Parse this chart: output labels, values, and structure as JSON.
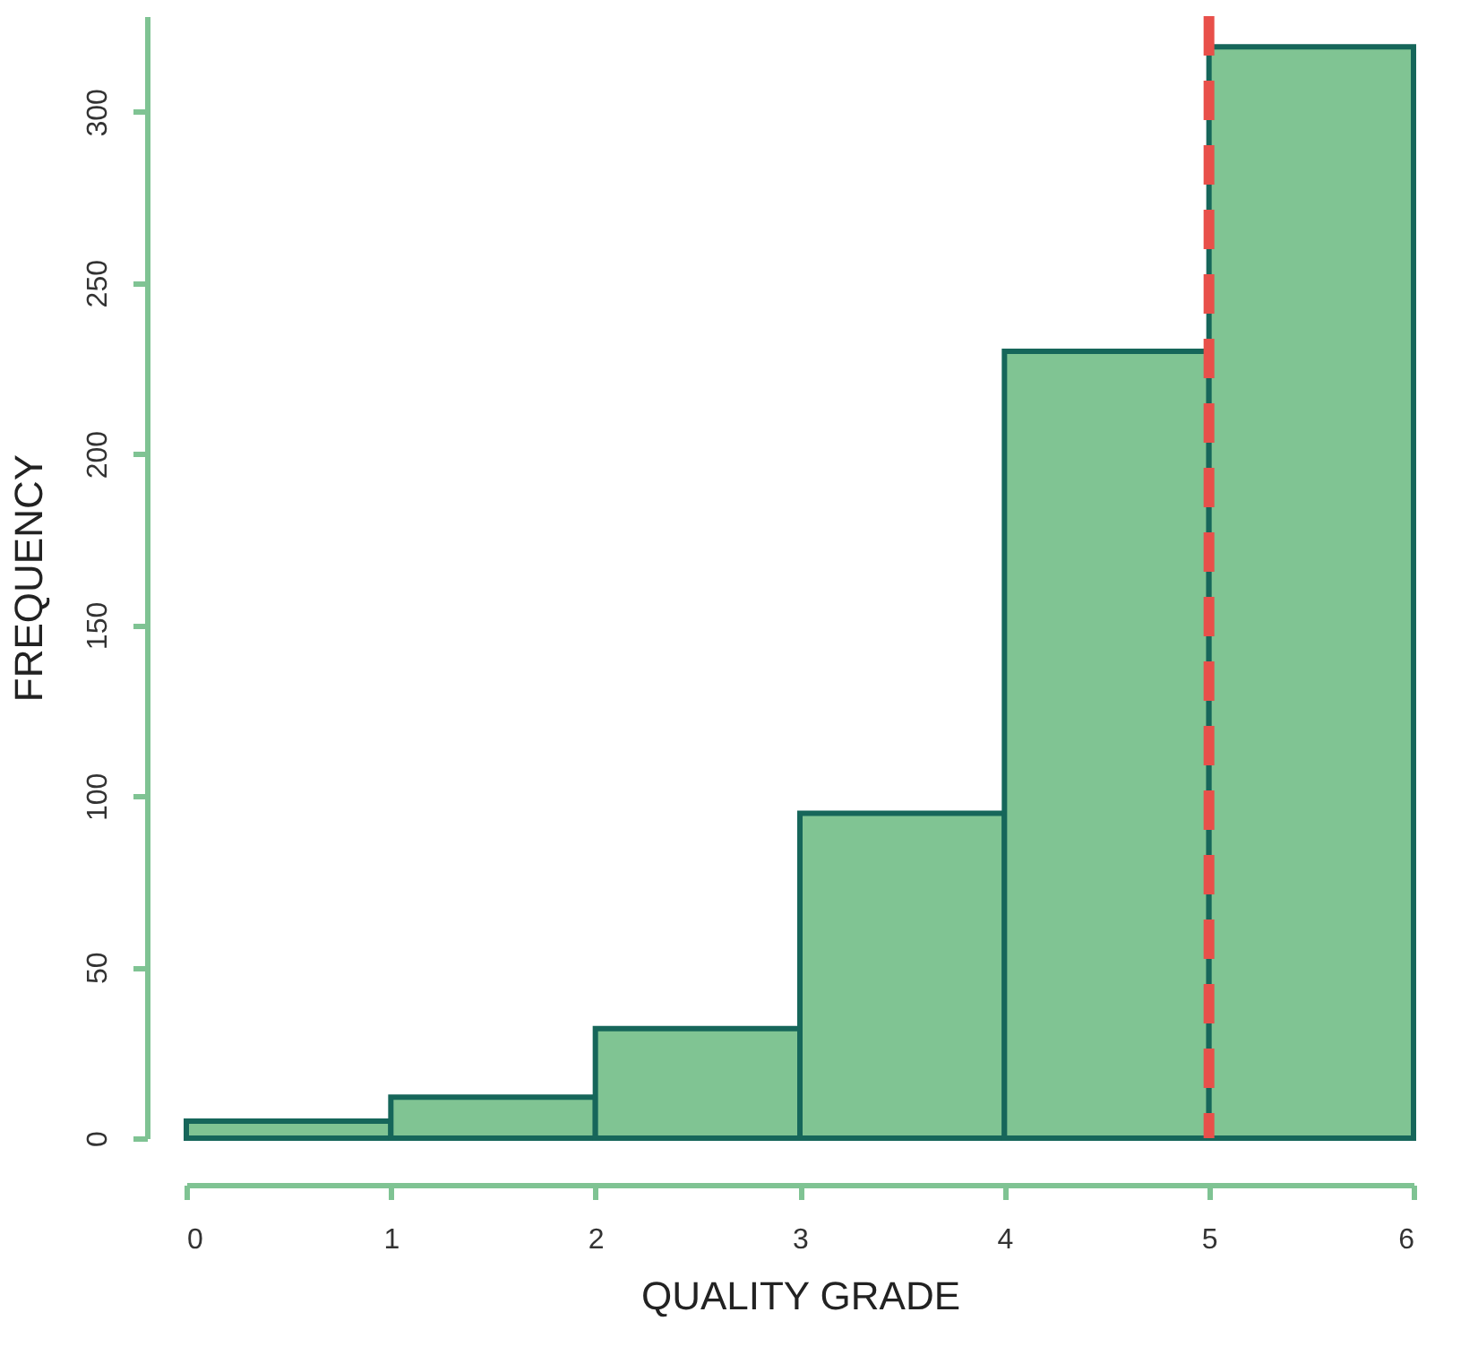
{
  "chart_data": {
    "type": "histogram",
    "xlabel": "QUALITY GRADE",
    "ylabel": "FREQUENCY",
    "bins": [
      0,
      1,
      2,
      3,
      4,
      5,
      6
    ],
    "values": [
      5,
      12,
      32,
      95,
      230,
      319
    ],
    "color": "#80c493",
    "xlim": [
      0,
      6
    ],
    "xticks": [
      0,
      1,
      2,
      3,
      4,
      5,
      6
    ],
    "ylim": [
      0,
      328
    ],
    "yticks": [
      0,
      50,
      100,
      150,
      200,
      250,
      300
    ],
    "grid": false,
    "ref_lines": [
      {
        "axis": "x",
        "value": 5,
        "label": null,
        "color": "#e8504a",
        "line_style": "dashed"
      }
    ]
  }
}
